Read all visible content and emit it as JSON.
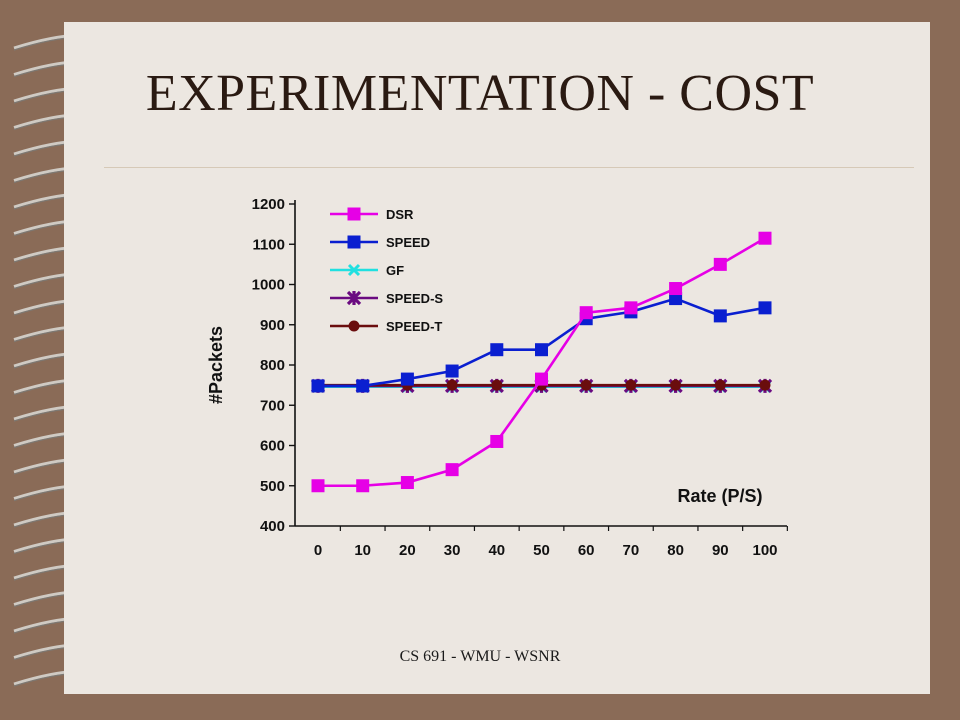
{
  "slide": {
    "title": "EXPERIMENTATION - COST",
    "footer": "CS 691 - WMU - WSNR"
  },
  "chart_data": {
    "type": "line",
    "title": "",
    "xlabel": "Rate (P/S)",
    "ylabel": "#Packets",
    "x": [
      0,
      10,
      20,
      30,
      40,
      50,
      60,
      70,
      80,
      90,
      100
    ],
    "ylim": [
      400,
      1200
    ],
    "yticks": [
      400,
      500,
      600,
      700,
      800,
      900,
      1000,
      1100,
      1200
    ],
    "grid": false,
    "legend_position": "top-left",
    "series": [
      {
        "name": "DSR",
        "color": "#e600e6",
        "marker": "square",
        "values": [
          500,
          500,
          508,
          540,
          610,
          765,
          930,
          942,
          990,
          1050,
          1115
        ]
      },
      {
        "name": "SPEED",
        "color": "#0a1fd0",
        "marker": "square",
        "values": [
          748,
          748,
          765,
          785,
          838,
          838,
          915,
          932,
          965,
          922,
          942
        ]
      },
      {
        "name": "GF",
        "color": "#20e0e0",
        "marker": "x",
        "values": [
          746,
          746,
          746,
          746,
          746,
          746,
          746,
          746,
          746,
          746,
          746
        ]
      },
      {
        "name": "SPEED-S",
        "color": "#6a0a80",
        "marker": "star",
        "values": [
          748,
          748,
          748,
          748,
          748,
          748,
          748,
          748,
          748,
          748,
          748
        ]
      },
      {
        "name": "SPEED-T",
        "color": "#6a0d0d",
        "marker": "circle",
        "values": [
          750,
          750,
          750,
          750,
          750,
          750,
          750,
          750,
          750,
          750,
          750
        ]
      }
    ]
  }
}
